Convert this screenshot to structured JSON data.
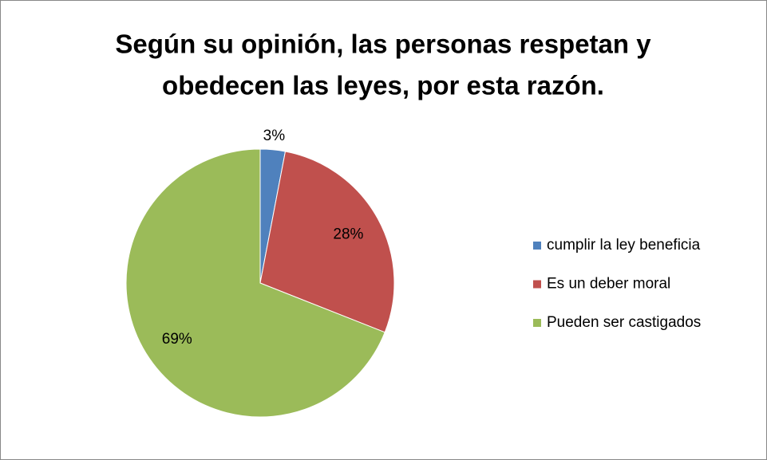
{
  "chart_data": {
    "type": "pie",
    "title": [
      "Según su opinión, las personas respetan y",
      "obedecen las leyes, por esta razón."
    ],
    "categories": [
      "cumplir la ley beneficia",
      "Es un deber moral",
      "Pueden ser castigados"
    ],
    "values": [
      3,
      28,
      69
    ],
    "value_labels": [
      "3%",
      "28%",
      "69%"
    ],
    "colors": [
      "#4f81bd",
      "#c0504d",
      "#9bbb59"
    ],
    "legend": "right"
  }
}
